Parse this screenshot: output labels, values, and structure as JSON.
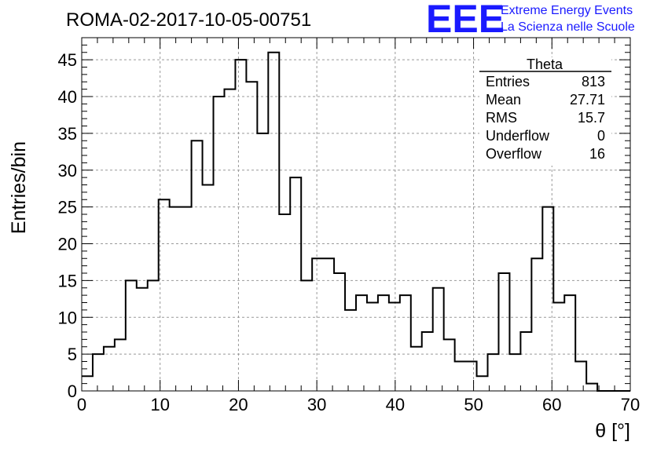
{
  "header": {
    "title": "ROMA-02-2017-10-05-00751",
    "logo_letters": "EEE",
    "logo_line1": "Extreme Energy Events",
    "logo_line2": "La Scienza nelle Scuole",
    "logo_color": "#1a1aff"
  },
  "stats": {
    "name": "Theta",
    "rows": [
      {
        "label": "Entries",
        "value": "813"
      },
      {
        "label": "Mean",
        "value": "27.71"
      },
      {
        "label": "RMS",
        "value": "15.7"
      },
      {
        "label": "Underflow",
        "value": "0"
      },
      {
        "label": "Overflow",
        "value": "16"
      }
    ]
  },
  "chart_data": {
    "type": "histogram",
    "xlabel": "θ [°]",
    "ylabel": "Entries/bin",
    "xlim": [
      0,
      70
    ],
    "ylim": [
      0,
      48
    ],
    "bin_width": 1.4,
    "bin_start": 0,
    "values": [
      2,
      5,
      6,
      7,
      15,
      14,
      15,
      26,
      25,
      25,
      34,
      28,
      40,
      41,
      45,
      42,
      35,
      46,
      24,
      29,
      15,
      18,
      18,
      16,
      11,
      13,
      12,
      13,
      12,
      13,
      6,
      8,
      14,
      7,
      4,
      4,
      2,
      5,
      16,
      5,
      8,
      18,
      25,
      12,
      13,
      4,
      1,
      0,
      0,
      0
    ],
    "x_ticks": [
      0,
      10,
      20,
      30,
      40,
      50,
      60,
      70
    ],
    "y_ticks": [
      0,
      5,
      10,
      15,
      20,
      25,
      30,
      35,
      40,
      45
    ],
    "grid": true,
    "line_color": "#000000"
  }
}
